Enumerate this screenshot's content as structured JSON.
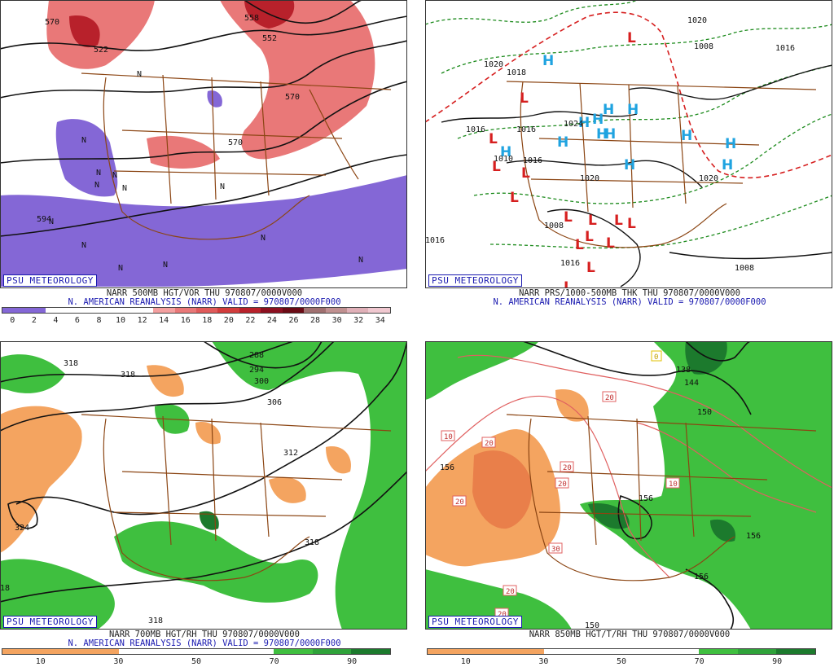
{
  "colors": {
    "vor_pos": "#e05a5a",
    "vor_pos_dark": "#b8212b",
    "vor_neg": "#8467d6",
    "rh_dry": "#f4a460",
    "rh_moist": "#3fbf3f",
    "rh_moist_dark": "#1c7a2d",
    "border": "#8b4513",
    "contour": "#111111",
    "badge": "#1a1ab0",
    "high": "#1fa3e0",
    "low": "#d61f1f",
    "thk_warm": "#d61f1f",
    "thk_cool": "#1b8a1b"
  },
  "panels": [
    {
      "badge": "PSU METEOROLOGY",
      "title1": "NARR 500MB HGT/VOR THU 970807/0000V000",
      "title2": "N. AMERICAN REANALYSIS (NARR) VALID = 970807/0000F000",
      "colorbar": [
        "#8467d6",
        "#8467d6",
        "#ffffff",
        "#ffffff",
        "#ffffff",
        "#ffffff",
        "#ffffff",
        "#f4a0a0",
        "#e97878",
        "#e05a5a",
        "#d23c3c",
        "#b8212b",
        "#8c1020",
        "#6a0a14",
        "#a07070",
        "#c09090",
        "#e0b0b8",
        "#f0c8d0"
      ],
      "ticks": [
        "0",
        "2",
        "4",
        "6",
        "8",
        "10",
        "12",
        "14",
        "16",
        "18",
        "20",
        "22",
        "24",
        "26",
        "28",
        "30",
        "32",
        "34"
      ],
      "labels": [
        "570",
        "552",
        "558",
        "570",
        "594",
        "570",
        "522"
      ],
      "n_marks": [
        "N",
        "N",
        "N",
        "N",
        "N",
        "N",
        "N",
        "N",
        "N",
        "N",
        "N",
        "N",
        "N"
      ]
    },
    {
      "badge": "PSU METEOROLOGY",
      "title1": "NARR PRS/1000-500MB THK THU 970807/0000V000",
      "title2": "N. AMERICAN REANALYSIS (NARR) VALID = 970807/0000F000",
      "labels": [
        "1020",
        "1008",
        "1016",
        "1020",
        "1016",
        "1016",
        "1008",
        "1016",
        "1008",
        "1016",
        "1024",
        "1020",
        "1010",
        "1020",
        "1018",
        "1016"
      ],
      "highs": [
        "H",
        "H",
        "H",
        "H",
        "H",
        "H",
        "H",
        "H",
        "H",
        "H",
        "H",
        "H",
        "H"
      ],
      "lows": [
        "L",
        "L",
        "L",
        "L",
        "L",
        "L",
        "L",
        "L",
        "L",
        "L",
        "L",
        "L",
        "L",
        "L",
        "L"
      ]
    },
    {
      "badge": "PSU METEOROLOGY",
      "title1": "NARR 700MB HGT/RH THU 970807/0000V000",
      "title2": "N. AMERICAN REANALYSIS (NARR) VALID = 970807/0000F000",
      "colorbar": [
        "#f4a460",
        "#f4a460",
        "#f4a460",
        "#f4a460",
        "#f4a460",
        "#f4a460",
        "#ffffff",
        "#ffffff",
        "#ffffff",
        "#ffffff",
        "#ffffff",
        "#ffffff",
        "#ffffff",
        "#ffffff",
        "#3fbf3f",
        "#3fbf3f",
        "#2fa23a",
        "#2fa23a",
        "#1c7a2d",
        "#1c7a2d"
      ],
      "ticks": [
        "10",
        "30",
        "50",
        "70",
        "90"
      ],
      "labels": [
        "318",
        "318",
        "288",
        "294",
        "300",
        "306",
        "312",
        "324",
        "318",
        "318",
        "18"
      ]
    },
    {
      "badge": "PSU METEOROLOGY",
      "title1": "NARR 850MB HGT/T/RH THU 970807/0000V000",
      "colorbar": [
        "#f4a460",
        "#f4a460",
        "#f4a460",
        "#f4a460",
        "#f4a460",
        "#f4a460",
        "#ffffff",
        "#ffffff",
        "#ffffff",
        "#ffffff",
        "#ffffff",
        "#ffffff",
        "#ffffff",
        "#ffffff",
        "#3fbf3f",
        "#3fbf3f",
        "#2fa23a",
        "#2fa23a",
        "#1c7a2d",
        "#1c7a2d"
      ],
      "ticks": [
        "10",
        "30",
        "50",
        "70",
        "90"
      ],
      "labels": [
        "156",
        "156",
        "156",
        "156",
        "150",
        "138",
        "144",
        "150"
      ],
      "temp_labels": [
        "10",
        "20",
        "20",
        "20",
        "10",
        "20",
        "20",
        "30",
        "20",
        "20",
        "0"
      ]
    }
  ]
}
